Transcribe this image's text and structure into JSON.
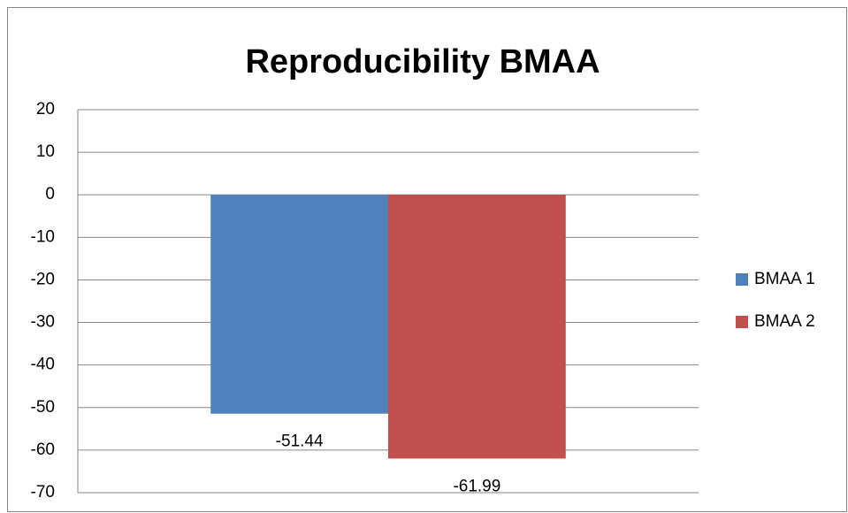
{
  "chart_data": {
    "type": "bar",
    "title": "Reproducibility BMAA",
    "categories": [
      null
    ],
    "series": [
      {
        "name": "BMAA 1",
        "color": "#4f81bd",
        "values": [
          -51.44
        ]
      },
      {
        "name": "BMAA 2",
        "color": "#c0504d",
        "values": [
          -61.99
        ]
      }
    ],
    "ylim": [
      -70,
      20
    ],
    "yticks": [
      -70,
      -60,
      -50,
      -40,
      -30,
      -20,
      -10,
      0,
      10,
      20
    ],
    "grid": true,
    "legend": "right"
  }
}
